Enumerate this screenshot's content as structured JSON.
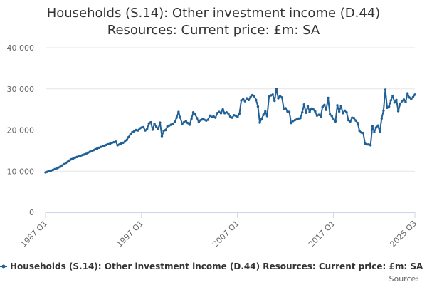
{
  "chart_data": {
    "type": "line",
    "title_lines": [
      "Households (S.14): Other investment income (D.44)",
      "Resources: Current price: £m: SA"
    ],
    "xlabel": "",
    "ylabel": "",
    "x_ticks": [
      "1987 Q1",
      "1997 Q1",
      "2007 Q1",
      "2017 Q1",
      "2025 Q3"
    ],
    "y_ticks": [
      "0",
      "10 000",
      "20 000",
      "30 000",
      "40 000"
    ],
    "ylim": [
      0,
      40000
    ],
    "x_start": "1987 Q1",
    "x_end": "2025 Q3",
    "grid": true,
    "legend_position": "bottom",
    "series": [
      {
        "name": "Households (S.14): Other investment income (D.44) Resources: Current price: £m: SA",
        "color": "#206095",
        "values": [
          9700,
          9850,
          10000,
          10150,
          10300,
          10500,
          10700,
          10900,
          11100,
          11400,
          11700,
          12000,
          12300,
          12600,
          12900,
          13100,
          13300,
          13450,
          13600,
          13750,
          13900,
          14050,
          14200,
          14500,
          14700,
          14900,
          15100,
          15350,
          15500,
          15700,
          15900,
          16050,
          16200,
          16400,
          16550,
          16700,
          16900,
          17050,
          17200,
          16300,
          16500,
          16700,
          16900,
          17200,
          17600,
          18300,
          19000,
          19500,
          19700,
          20000,
          19900,
          20400,
          20600,
          20700,
          19900,
          20300,
          21600,
          21900,
          20100,
          21500,
          20800,
          20300,
          21800,
          18500,
          19800,
          20000,
          20900,
          21100,
          21300,
          21500,
          22000,
          23000,
          24400,
          23000,
          21500,
          21900,
          22200,
          21700,
          21300,
          22700,
          24300,
          23800,
          22900,
          21900,
          22400,
          22600,
          22500,
          22300,
          22500,
          23500,
          23200,
          23300,
          23000,
          24100,
          24400,
          24100,
          25000,
          24100,
          24300,
          24000,
          23300,
          23000,
          23600,
          23500,
          23200,
          24000,
          27200,
          27500,
          27000,
          27700,
          27300,
          28000,
          28500,
          28200,
          27300,
          25700,
          21800,
          22700,
          23700,
          24500,
          23400,
          28100,
          28400,
          28600,
          27100,
          30000,
          27700,
          28300,
          27900,
          25200,
          25300,
          24500,
          24400,
          21700,
          22200,
          22400,
          22600,
          22800,
          22900,
          24300,
          26200,
          24200,
          25800,
          24400,
          25200,
          25000,
          24500,
          23500,
          23700,
          23300,
          25600,
          26100,
          24900,
          27800,
          23800,
          23400,
          22600,
          22100,
          26000,
          24500,
          25800,
          24100,
          24700,
          24300,
          22400,
          22100,
          23000,
          22900,
          22300,
          21700,
          19800,
          19400,
          19300,
          16700,
          16500,
          16500,
          16300,
          21000,
          19500,
          20600,
          21100,
          19600,
          22800,
          24700,
          29800,
          25400,
          25700,
          27200,
          28300,
          26700,
          27300,
          24600,
          26300,
          27000,
          27400,
          26800,
          28900,
          27900,
          27500,
          28000,
          28600
        ]
      }
    ]
  },
  "source": {
    "label": "Source:"
  }
}
